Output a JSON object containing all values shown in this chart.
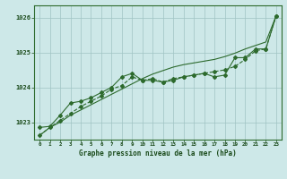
{
  "title": "Graphe pression niveau de la mer (hPa)",
  "x_values": [
    0,
    1,
    2,
    3,
    4,
    5,
    6,
    7,
    8,
    9,
    10,
    11,
    12,
    13,
    14,
    15,
    16,
    17,
    18,
    19,
    20,
    21,
    22,
    23
  ],
  "line1_dotted": [
    1022.62,
    1022.85,
    1023.05,
    1023.25,
    1023.45,
    1023.6,
    1023.75,
    1023.95,
    1024.05,
    1024.3,
    1024.2,
    1024.25,
    1024.15,
    1024.25,
    1024.3,
    1024.35,
    1024.4,
    1024.45,
    1024.5,
    1024.6,
    1024.8,
    1025.05,
    1025.1,
    1026.05
  ],
  "line2_marked": [
    1022.85,
    1022.88,
    1023.2,
    1023.55,
    1023.6,
    1023.7,
    1023.85,
    1024.0,
    1024.3,
    1024.4,
    1024.2,
    1024.2,
    1024.15,
    1024.2,
    1024.3,
    1024.35,
    1024.4,
    1024.3,
    1024.35,
    1024.85,
    1024.85,
    1025.1,
    1025.1,
    1026.05
  ],
  "line3_smooth": [
    1022.62,
    1022.85,
    1023.0,
    1023.2,
    1023.35,
    1023.5,
    1023.65,
    1023.8,
    1023.95,
    1024.1,
    1024.25,
    1024.38,
    1024.48,
    1024.58,
    1024.65,
    1024.7,
    1024.75,
    1024.8,
    1024.88,
    1024.98,
    1025.1,
    1025.2,
    1025.3,
    1026.05
  ],
  "line_color": "#2d6a2d",
  "bg_color": "#cde8e8",
  "grid_color": "#a0c4c4",
  "text_color": "#1a4a1a",
  "ylim_min": 1022.5,
  "ylim_max": 1026.35,
  "yticks": [
    1023,
    1024,
    1025,
    1026
  ],
  "marker": "D",
  "marker_size": 2.0,
  "line_width": 0.8
}
